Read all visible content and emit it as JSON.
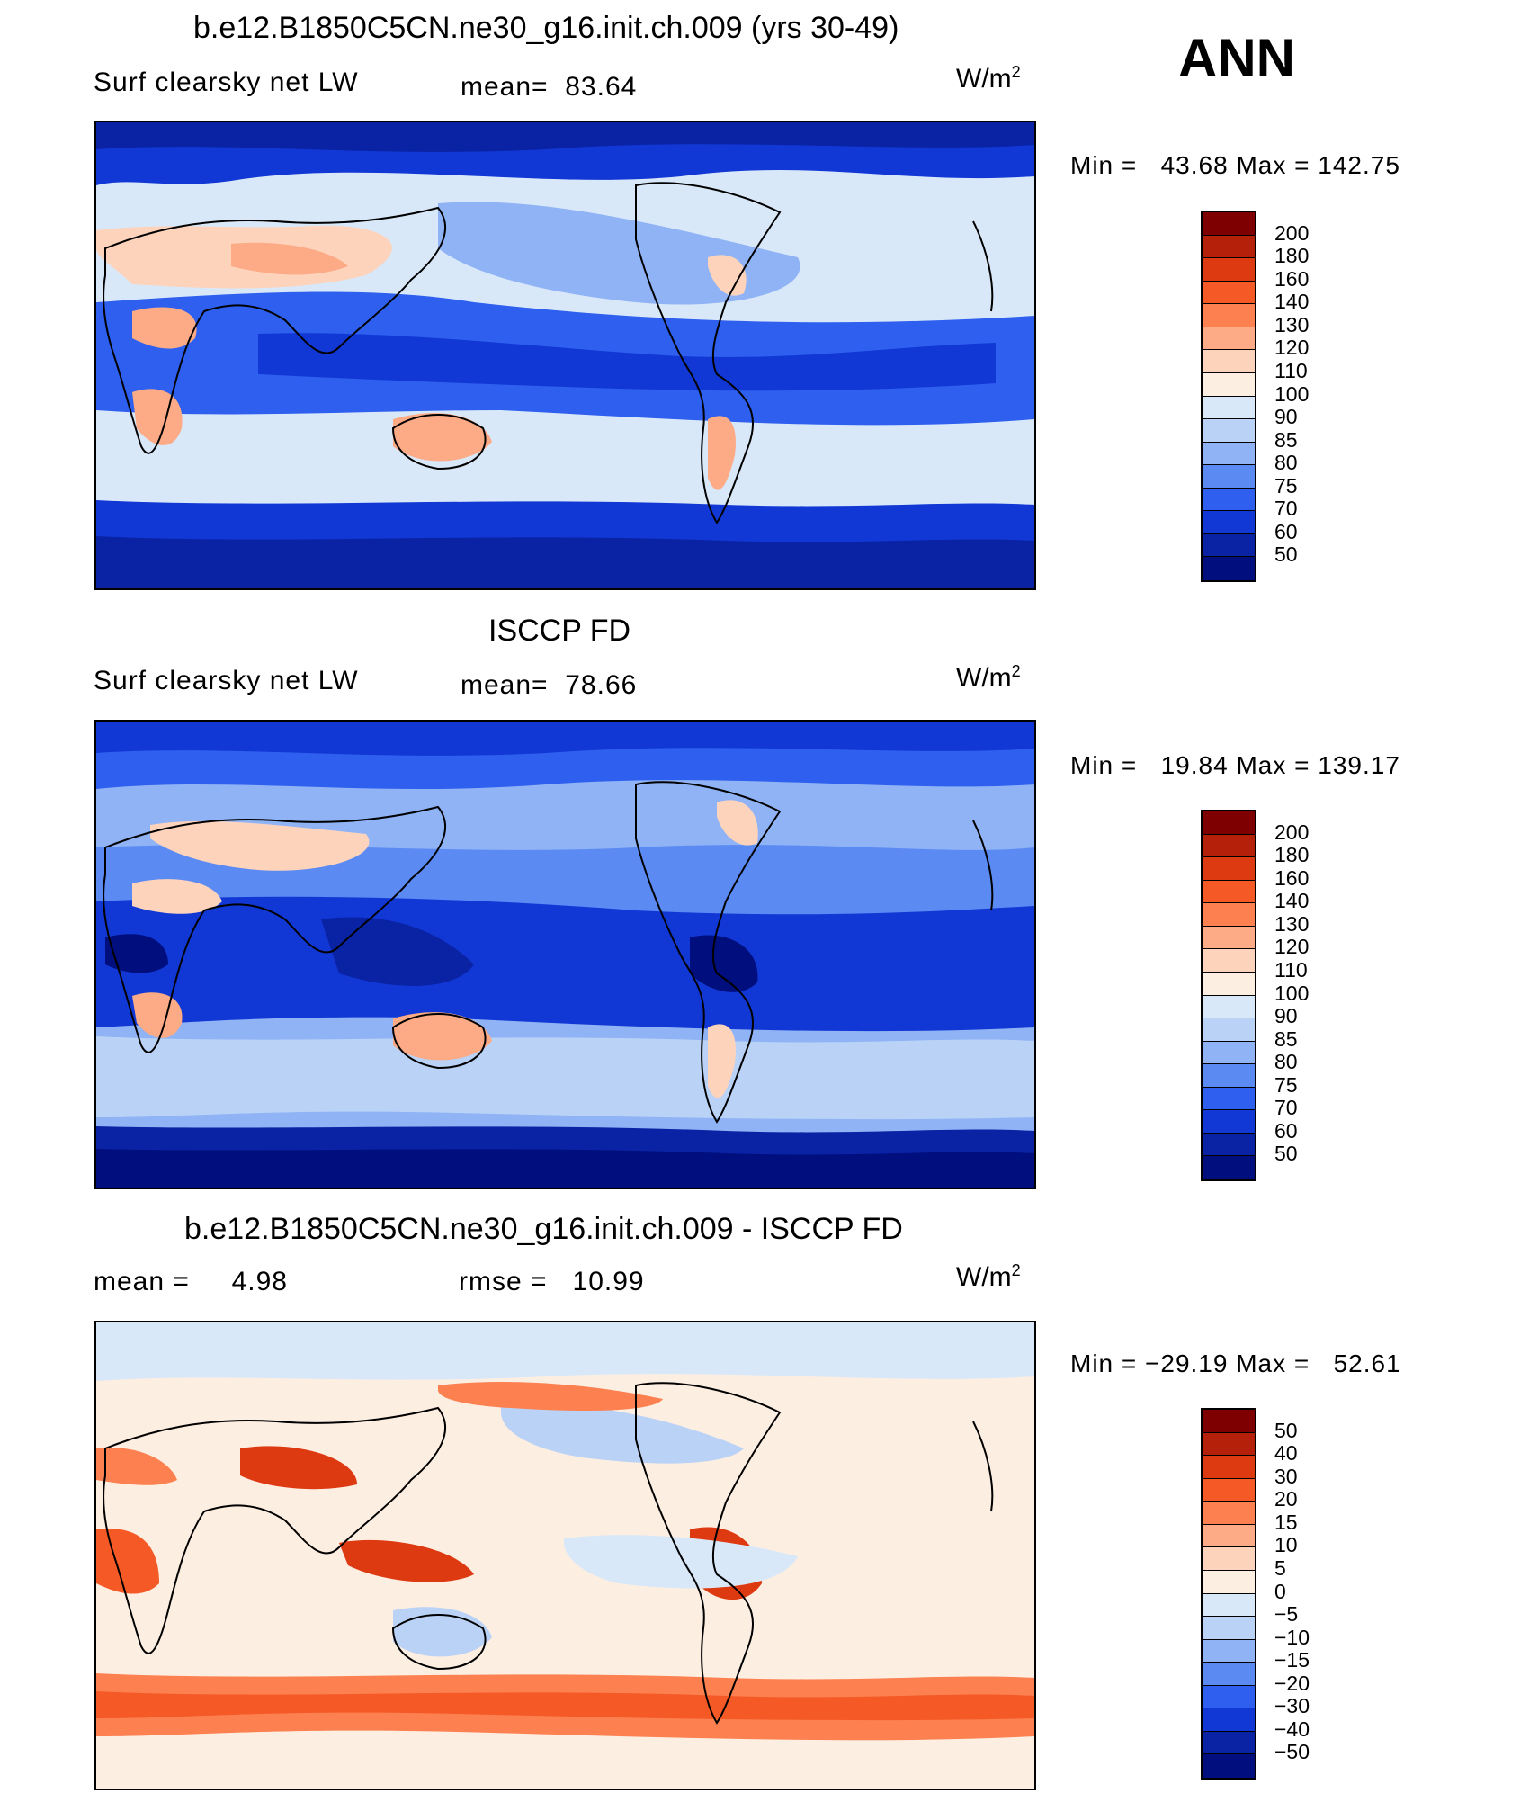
{
  "figure": {
    "title_top": "b.e12.B1850C5CN.ne30_g16.init.ch.009 (yrs 30-49)",
    "season": "ANN"
  },
  "panels": [
    {
      "id": "model",
      "title": "b.e12.B1850C5CN.ne30_g16.init.ch.009 (yrs 30-49)",
      "variable": "Surf clearsky net LW",
      "mean_label": "mean=",
      "mean_value": "83.64",
      "units": "W/m",
      "units_exp": "2",
      "min_label": "Min =",
      "min_value": "43.68",
      "max_label": "Max =",
      "max_value": "142.75",
      "colorbar_labels": [
        "200",
        "180",
        "160",
        "140",
        "130",
        "120",
        "110",
        "100",
        "90",
        "85",
        "80",
        "75",
        "70",
        "60",
        "50"
      ],
      "colors": [
        "#7f0000",
        "#b5200b",
        "#dd3a12",
        "#f55a26",
        "#fc8050",
        "#fcab86",
        "#fdd3bc",
        "#fdeee2",
        "#d9e8f9",
        "#b9d2f6",
        "#8fb3f5",
        "#5b8af3",
        "#2e5fee",
        "#1138d4",
        "#0a22a4",
        "#000f7d"
      ]
    },
    {
      "id": "obs",
      "title": "ISCCP FD",
      "variable": "Surf clearsky net LW",
      "mean_label": "mean=",
      "mean_value": "78.66",
      "units": "W/m",
      "units_exp": "2",
      "min_label": "Min =",
      "min_value": "19.84",
      "max_label": "Max =",
      "max_value": "139.17",
      "colorbar_labels": [
        "200",
        "180",
        "160",
        "140",
        "130",
        "120",
        "110",
        "100",
        "90",
        "85",
        "80",
        "75",
        "70",
        "60",
        "50"
      ],
      "colors": [
        "#7f0000",
        "#b5200b",
        "#dd3a12",
        "#f55a26",
        "#fc8050",
        "#fcab86",
        "#fdd3bc",
        "#fdeee2",
        "#d9e8f9",
        "#b9d2f6",
        "#8fb3f5",
        "#5b8af3",
        "#2e5fee",
        "#1138d4",
        "#0a22a4",
        "#000f7d"
      ]
    },
    {
      "id": "diff",
      "title": "b.e12.B1850C5CN.ne30_g16.init.ch.009 - ISCCP FD",
      "mean_label": "mean =",
      "mean_value": "4.98",
      "rmse_label": "rmse =",
      "rmse_value": "10.99",
      "units": "W/m",
      "units_exp": "2",
      "min_label": "Min =",
      "min_value": "−29.19",
      "max_label": "Max =",
      "max_value": "52.61",
      "colorbar_labels": [
        "50",
        "40",
        "30",
        "20",
        "15",
        "10",
        "5",
        "0",
        "−5",
        "−10",
        "−15",
        "−20",
        "−30",
        "−40",
        "−50"
      ],
      "colors": [
        "#7f0000",
        "#b5200b",
        "#dd3a12",
        "#f55a26",
        "#fc8050",
        "#fcab86",
        "#fdd3bc",
        "#fdeee2",
        "#d9e8f9",
        "#b9d2f6",
        "#8fb3f5",
        "#5b8af3",
        "#2e5fee",
        "#1138d4",
        "#0a22a4",
        "#000f7d"
      ]
    }
  ]
}
